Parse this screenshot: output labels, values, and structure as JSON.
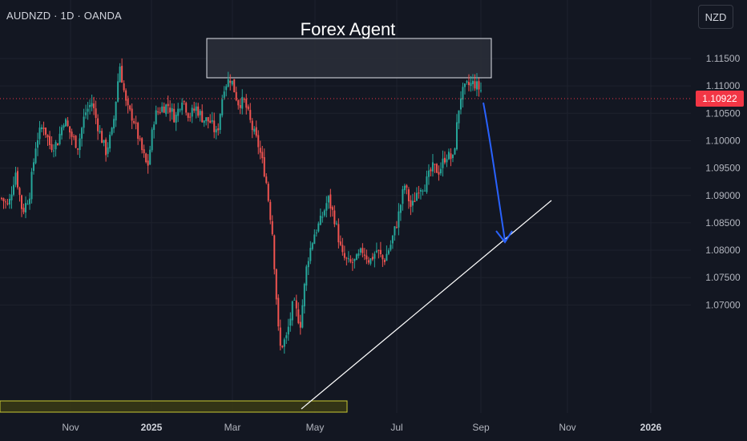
{
  "header": {
    "symbol_label": "AUDNZD · 1D · OANDA",
    "currency_button": "NZD"
  },
  "annotation": {
    "title": "Forex Agent"
  },
  "colors": {
    "background": "#131722",
    "bull": "#26a69a",
    "bear": "#ef5350",
    "last_price_tag": "#f23645",
    "trendline": "#ffffff",
    "arrow": "#2962ff",
    "zone_fill": "#2a2e39",
    "support_zone": "#4a4a1a"
  },
  "price_axis": {
    "ticks": [
      "1.11500",
      "1.11000",
      "1.10500",
      "1.10000",
      "1.09500",
      "1.09000",
      "1.08500",
      "1.08000",
      "1.07500",
      "1.07000"
    ],
    "last_price": "1.10922"
  },
  "time_axis": {
    "ticks": [
      {
        "label": "Nov",
        "bold": false
      },
      {
        "label": "2025",
        "bold": true
      },
      {
        "label": "Mar",
        "bold": false
      },
      {
        "label": "May",
        "bold": false
      },
      {
        "label": "Jul",
        "bold": false
      },
      {
        "label": "Sep",
        "bold": false
      },
      {
        "label": "Nov",
        "bold": false
      },
      {
        "label": "2026",
        "bold": true
      }
    ]
  },
  "chart_data": {
    "type": "candlestick",
    "symbol": "AUDNZD",
    "interval": "1D",
    "source": "OANDA",
    "ylim": [
      1.0655,
      1.1195
    ],
    "price_path": [
      [
        1.0895,
        1.088
      ],
      [
        1.0945,
        1.087
      ],
      [
        1.09,
        1.1
      ],
      [
        1.103,
        1.099
      ],
      [
        1.0995,
        1.104
      ],
      [
        1.101,
        1.099
      ],
      [
        1.105,
        1.107
      ],
      [
        1.102,
        1.098
      ],
      [
        1.102,
        1.114
      ],
      [
        1.106,
        1.104
      ],
      [
        1.099,
        1.095
      ],
      [
        1.1045,
        1.106
      ],
      [
        1.1065,
        1.104
      ],
      [
        1.108,
        1.1045
      ],
      [
        1.106,
        1.104
      ],
      [
        1.1035,
        1.101
      ],
      [
        1.11,
        1.1115
      ],
      [
        1.107,
        1.107
      ],
      [
        1.1025,
        1.099
      ],
      [
        1.0935,
        1.083
      ],
      [
        1.062,
        1.064
      ],
      [
        1.0705,
        1.0665
      ],
      [
        1.078,
        1.083
      ],
      [
        1.0855,
        1.0895
      ],
      [
        1.0855,
        1.079
      ],
      [
        1.0775,
        1.078
      ],
      [
        1.08,
        1.078
      ],
      [
        1.08,
        1.078
      ],
      [
        1.081,
        1.0855
      ],
      [
        1.092,
        1.0875
      ],
      [
        1.0915,
        1.092
      ],
      [
        1.095,
        1.0945
      ],
      [
        1.0975,
        1.0965
      ],
      [
        1.108,
        1.11
      ],
      [
        1.1105,
        1.1092
      ]
    ]
  }
}
